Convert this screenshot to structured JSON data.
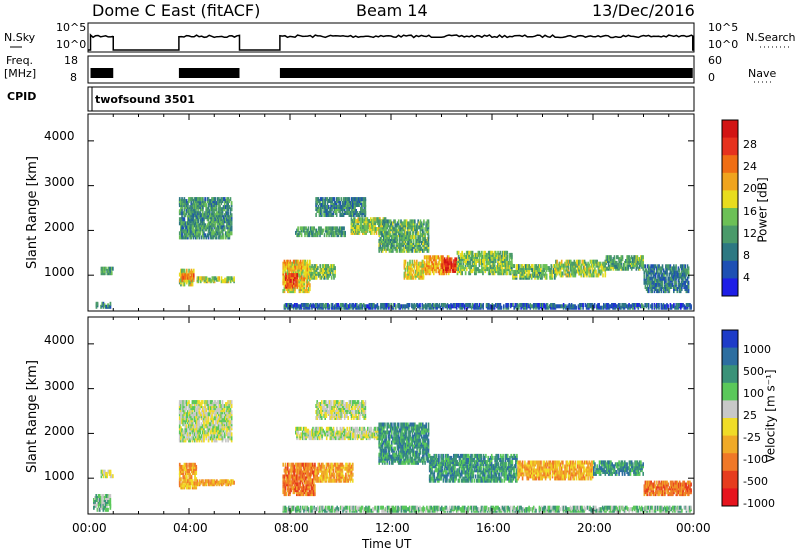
{
  "header": {
    "station": "Dome C East (fitACF)",
    "beam": "Beam 14",
    "date": "13/Dec/2016"
  },
  "left_labels": {
    "nsky": "N.Sky",
    "freq_line1": "Freq.",
    "freq_line2": "[MHz]",
    "cpid": "CPID"
  },
  "right_labels": {
    "nsearch": "N.Search",
    "nave": "Nave"
  },
  "cpid_name": "twofsound 3501",
  "noise_panel": {
    "left_ticks": [
      "10^5",
      "10^0"
    ],
    "right_ticks": [
      "10^5",
      "10^0"
    ]
  },
  "freq_panel": {
    "left_ticks": [
      "18",
      "8"
    ],
    "right_ticks": [
      "60",
      "0"
    ]
  },
  "colors": {
    "power": [
      "#1e1ee6",
      "#1e50b4",
      "#2d7882",
      "#4a9a6a",
      "#6cc056",
      "#e8dc1e",
      "#f0a41e",
      "#f06e14",
      "#e6321e",
      "#d21414"
    ],
    "velocity": [
      "#1e3cc8",
      "#2d6ea0",
      "#3a9278",
      "#5ac85a",
      "#c8c8c8",
      "#f0dc28",
      "#f0aa28",
      "#f07828",
      "#e63c1e",
      "#e6141e"
    ]
  },
  "chart_data": [
    {
      "type": "heatmap",
      "name": "power",
      "ylabel": "Slant Range [km]",
      "yticks": [
        "4000",
        "3000",
        "2000",
        "1000"
      ],
      "ylim": [
        200,
        4600
      ],
      "xlim": [
        0,
        24
      ],
      "colorbar": {
        "label": "Power [dB]",
        "ticks": [
          "28",
          "24",
          "20",
          "16",
          "12",
          "8",
          "4"
        ],
        "range": [
          0,
          30
        ]
      },
      "patches": [
        {
          "t0": 0.3,
          "t1": 0.9,
          "r0": 250,
          "r1": 350,
          "v": 7
        },
        {
          "t0": 0.5,
          "t1": 1.0,
          "r0": 1000,
          "r1": 1150,
          "v": 10
        },
        {
          "t0": 3.6,
          "t1": 4.2,
          "r0": 750,
          "r1": 1100,
          "v": 16
        },
        {
          "t0": 3.7,
          "t1": 4.2,
          "r0": 850,
          "r1": 1000,
          "v": 24
        },
        {
          "t0": 4.3,
          "t1": 5.8,
          "r0": 820,
          "r1": 920,
          "v": 14
        },
        {
          "t0": 3.6,
          "t1": 5.7,
          "r0": 1800,
          "r1": 2700,
          "v": 9
        },
        {
          "t0": 7.7,
          "t1": 8.8,
          "r0": 600,
          "r1": 1300,
          "v": 18
        },
        {
          "t0": 7.8,
          "t1": 8.3,
          "r0": 700,
          "r1": 1000,
          "v": 26
        },
        {
          "t0": 8.8,
          "t1": 9.8,
          "r0": 900,
          "r1": 1200,
          "v": 13
        },
        {
          "t0": 8.2,
          "t1": 10.2,
          "r0": 1850,
          "r1": 2050,
          "v": 10
        },
        {
          "t0": 9.0,
          "t1": 11.0,
          "r0": 2300,
          "r1": 2700,
          "v": 8
        },
        {
          "t0": 10.4,
          "t1": 11.8,
          "r0": 1900,
          "r1": 2250,
          "v": 14
        },
        {
          "t0": 11.5,
          "t1": 13.5,
          "r0": 1500,
          "r1": 2200,
          "v": 11
        },
        {
          "t0": 12.5,
          "t1": 13.3,
          "r0": 900,
          "r1": 1300,
          "v": 17
        },
        {
          "t0": 13.3,
          "t1": 14.3,
          "r0": 1000,
          "r1": 1400,
          "v": 20
        },
        {
          "t0": 14.0,
          "t1": 14.6,
          "r0": 1050,
          "r1": 1350,
          "v": 27
        },
        {
          "t0": 14.6,
          "t1": 16.8,
          "r0": 1000,
          "r1": 1500,
          "v": 13
        },
        {
          "t0": 16.8,
          "t1": 18.5,
          "r0": 900,
          "r1": 1200,
          "v": 12
        },
        {
          "t0": 18.5,
          "t1": 20.5,
          "r0": 950,
          "r1": 1300,
          "v": 14
        },
        {
          "t0": 20.5,
          "t1": 22.0,
          "r0": 1100,
          "r1": 1400,
          "v": 11
        },
        {
          "t0": 22.0,
          "t1": 23.8,
          "r0": 600,
          "r1": 1200,
          "v": 7
        },
        {
          "t0": 7.7,
          "t1": 23.9,
          "r0": 230,
          "r1": 320,
          "v": 5
        }
      ]
    },
    {
      "type": "heatmap",
      "name": "velocity",
      "ylabel": "Slant Range [km]",
      "yticks": [
        "4000",
        "3000",
        "2000",
        "1000"
      ],
      "ylim": [
        200,
        4600
      ],
      "xlim": [
        0,
        24
      ],
      "xticks": [
        "00:00",
        "04:00",
        "08:00",
        "12:00",
        "16:00",
        "20:00",
        "00:00"
      ],
      "xlabel": "Time UT",
      "colorbar": {
        "label": "Velocity [m s⁻¹]",
        "ticks": [
          "1000",
          "500",
          "100",
          "25",
          "-25",
          "-100",
          "-500",
          "-1000"
        ]
      },
      "patches": [
        {
          "t0": 0.2,
          "t1": 0.9,
          "r0": 250,
          "r1": 600,
          "v": 3
        },
        {
          "t0": 0.5,
          "t1": 1.0,
          "r0": 1000,
          "r1": 1150,
          "v": 4
        },
        {
          "t0": 3.6,
          "t1": 4.3,
          "r0": 750,
          "r1": 1300,
          "v": 6
        },
        {
          "t0": 4.3,
          "t1": 5.8,
          "r0": 820,
          "r1": 920,
          "v": 6
        },
        {
          "t0": 3.6,
          "t1": 5.7,
          "r0": 1800,
          "r1": 2700,
          "v": 4
        },
        {
          "t0": 7.7,
          "t1": 9.0,
          "r0": 600,
          "r1": 1300,
          "v": 7
        },
        {
          "t0": 9.0,
          "t1": 10.5,
          "r0": 900,
          "r1": 1300,
          "v": 6
        },
        {
          "t0": 8.2,
          "t1": 11.5,
          "r0": 1850,
          "r1": 2100,
          "v": 4
        },
        {
          "t0": 9.0,
          "t1": 11.0,
          "r0": 2300,
          "r1": 2700,
          "v": 4
        },
        {
          "t0": 11.5,
          "t1": 13.5,
          "r0": 1300,
          "r1": 2200,
          "v": 2
        },
        {
          "t0": 13.5,
          "t1": 17.0,
          "r0": 900,
          "r1": 1500,
          "v": 2
        },
        {
          "t0": 17.0,
          "t1": 20.0,
          "r0": 950,
          "r1": 1350,
          "v": 6
        },
        {
          "t0": 20.0,
          "t1": 22.0,
          "r0": 1050,
          "r1": 1350,
          "v": 2
        },
        {
          "t0": 22.0,
          "t1": 23.9,
          "r0": 600,
          "r1": 900,
          "v": 7
        },
        {
          "t0": 7.7,
          "t1": 23.9,
          "r0": 230,
          "r1": 330,
          "v": 3
        }
      ]
    }
  ]
}
